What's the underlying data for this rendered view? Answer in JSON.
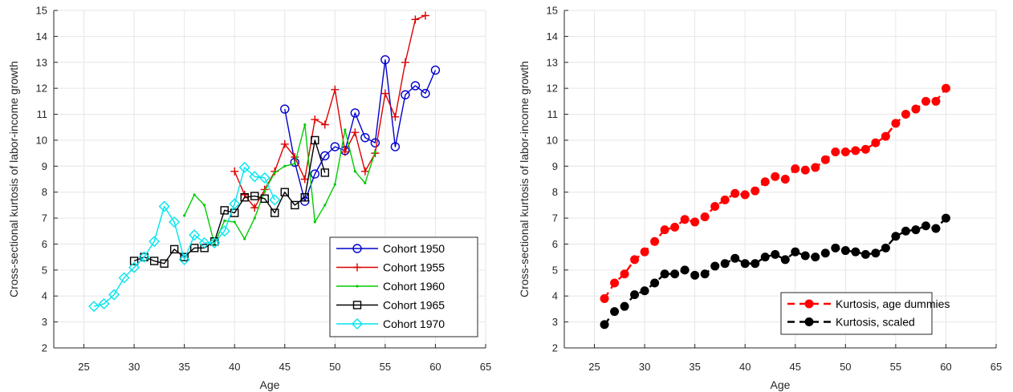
{
  "chart_data": [
    {
      "type": "line",
      "xlabel": "Age",
      "ylabel": "Cross-sectional kurtosis of labor-income growth",
      "xlim": [
        22,
        65
      ],
      "ylim": [
        2,
        15
      ],
      "xticks": [
        25,
        30,
        35,
        40,
        45,
        50,
        55,
        60,
        65
      ],
      "yticks": [
        2,
        3,
        4,
        5,
        6,
        7,
        8,
        9,
        10,
        11,
        12,
        13,
        14,
        15
      ],
      "grid": true,
      "legend_position": "bottom-right",
      "series": [
        {
          "name": "Cohort 1950",
          "color": "#0000cc",
          "marker": "circle",
          "x": [
            45,
            46,
            47,
            48,
            49,
            50,
            51,
            52,
            53,
            54,
            55,
            56,
            57,
            58,
            59,
            60
          ],
          "y": [
            11.2,
            9.15,
            7.65,
            8.7,
            9.4,
            9.75,
            9.6,
            11.05,
            10.1,
            9.9,
            13.1,
            9.75,
            11.75,
            12.1,
            11.8,
            12.7
          ]
        },
        {
          "name": "Cohort 1955",
          "color": "#dd0000",
          "marker": "plus",
          "x": [
            40,
            41,
            42,
            43,
            44,
            45,
            46,
            47,
            48,
            49,
            50,
            51,
            52,
            53,
            54,
            55,
            56,
            57,
            58,
            59
          ],
          "y": [
            8.8,
            7.9,
            7.4,
            8.1,
            8.8,
            9.85,
            9.35,
            8.5,
            10.8,
            10.6,
            11.95,
            9.55,
            10.3,
            8.8,
            9.5,
            11.8,
            10.9,
            13.0,
            14.65,
            14.8
          ]
        },
        {
          "name": "Cohort 1960",
          "color": "#00cc00",
          "marker": "dot",
          "x": [
            35,
            36,
            37,
            38,
            39,
            40,
            41,
            42,
            43,
            44,
            45,
            46,
            47,
            48,
            49,
            50,
            51,
            52,
            53,
            54
          ],
          "y": [
            7.1,
            7.9,
            7.5,
            6.0,
            6.9,
            6.85,
            6.2,
            7.0,
            8.05,
            8.75,
            9.0,
            9.1,
            10.6,
            6.85,
            7.5,
            8.3,
            10.4,
            8.8,
            8.35,
            9.55
          ]
        },
        {
          "name": "Cohort 1965",
          "color": "#000000",
          "marker": "square",
          "x": [
            30,
            31,
            32,
            33,
            34,
            35,
            36,
            37,
            38,
            39,
            40,
            41,
            42,
            43,
            44,
            45,
            46,
            47,
            48,
            49
          ],
          "y": [
            5.35,
            5.5,
            5.35,
            5.25,
            5.8,
            5.5,
            5.85,
            5.85,
            6.1,
            7.3,
            7.2,
            7.8,
            7.85,
            7.75,
            7.2,
            8.0,
            7.5,
            7.8,
            10.0,
            8.75
          ]
        },
        {
          "name": "Cohort 1970",
          "color": "#00e5ee",
          "marker": "diamond",
          "x": [
            26,
            27,
            28,
            29,
            30,
            31,
            32,
            33,
            34,
            35,
            36,
            37,
            38,
            39,
            40,
            41,
            42,
            43,
            44
          ],
          "y": [
            3.6,
            3.7,
            4.05,
            4.7,
            5.1,
            5.5,
            6.1,
            7.45,
            6.85,
            5.4,
            6.35,
            6.05,
            6.05,
            6.5,
            7.55,
            8.95,
            8.6,
            8.55,
            7.7
          ]
        }
      ]
    },
    {
      "type": "line",
      "xlabel": "Age",
      "ylabel": "Cross-sectional kurtosis of labor-income growth",
      "xlim": [
        22,
        65
      ],
      "ylim": [
        2,
        15
      ],
      "xticks": [
        25,
        30,
        35,
        40,
        45,
        50,
        55,
        60,
        65
      ],
      "yticks": [
        2,
        3,
        4,
        5,
        6,
        7,
        8,
        9,
        10,
        11,
        12,
        13,
        14,
        15
      ],
      "grid": true,
      "legend_position": "bottom-right",
      "series": [
        {
          "name": "Kurtosis, age dummies",
          "color": "#ff0000",
          "marker": "filled-circle",
          "line": "dashed",
          "x": [
            26,
            27,
            28,
            29,
            30,
            31,
            32,
            33,
            34,
            35,
            36,
            37,
            38,
            39,
            40,
            41,
            42,
            43,
            44,
            45,
            46,
            47,
            48,
            49,
            50,
            51,
            52,
            53,
            54,
            55,
            56,
            57,
            58,
            59,
            60
          ],
          "y": [
            3.9,
            4.5,
            4.85,
            5.4,
            5.7,
            6.1,
            6.55,
            6.65,
            6.95,
            6.85,
            7.05,
            7.45,
            7.7,
            7.95,
            7.9,
            8.05,
            8.4,
            8.6,
            8.5,
            8.9,
            8.85,
            8.95,
            9.25,
            9.55,
            9.55,
            9.6,
            9.65,
            9.9,
            10.15,
            10.65,
            11.0,
            11.2,
            11.5,
            11.5,
            12.0
          ]
        },
        {
          "name": "Kurtosis, scaled",
          "color": "#000000",
          "marker": "filled-circle",
          "line": "dashed",
          "x": [
            26,
            27,
            28,
            29,
            30,
            31,
            32,
            33,
            34,
            35,
            36,
            37,
            38,
            39,
            40,
            41,
            42,
            43,
            44,
            45,
            46,
            47,
            48,
            49,
            50,
            51,
            52,
            53,
            54,
            55,
            56,
            57,
            58,
            59,
            60
          ],
          "y": [
            2.9,
            3.4,
            3.6,
            4.05,
            4.2,
            4.5,
            4.85,
            4.85,
            5.0,
            4.8,
            4.85,
            5.15,
            5.25,
            5.45,
            5.25,
            5.25,
            5.5,
            5.6,
            5.4,
            5.7,
            5.55,
            5.5,
            5.65,
            5.85,
            5.75,
            5.7,
            5.6,
            5.65,
            5.85,
            6.3,
            6.5,
            6.55,
            6.7,
            6.6,
            7.0
          ]
        }
      ]
    }
  ]
}
